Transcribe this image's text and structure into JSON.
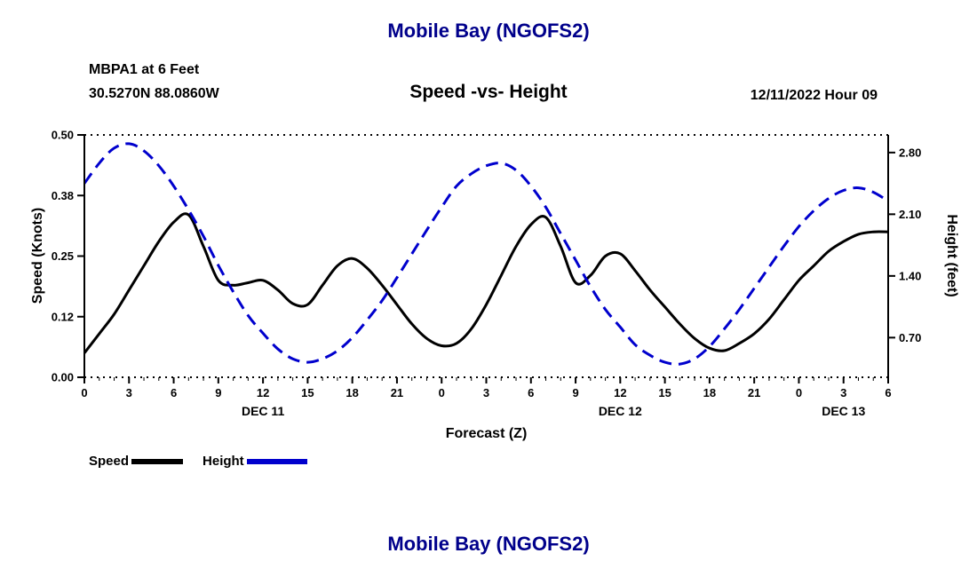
{
  "page": {
    "top_title": "Mobile Bay (NGOFS2)",
    "bottom_title": "Mobile Bay (NGOFS2)"
  },
  "colors": {
    "title": "#00008b",
    "speed": "#000000",
    "height": "#0000cd",
    "axis": "#000000"
  },
  "header": {
    "station_line1": "MBPA1 at 6 Feet",
    "station_line2": "30.5270N  88.0860W",
    "subtitle": "Speed -vs- Height",
    "datetime": "12/11/2022 Hour 09"
  },
  "legend": {
    "speed_label": "Speed",
    "height_label": "Height"
  },
  "chart_data": {
    "type": "line",
    "title": "Speed -vs- Height",
    "xlabel": "Forecast (Z)",
    "ylabel_left": "Speed (Knots)",
    "ylabel_right": "Height (feet)",
    "grid": false,
    "legend_position": "bottom-left",
    "x_hours_range": [
      0,
      54
    ],
    "x_tick_interval": 3,
    "x_tick_labels": [
      "0",
      "3",
      "6",
      "9",
      "12",
      "15",
      "18",
      "21",
      "0",
      "3",
      "6",
      "9",
      "12",
      "15",
      "18",
      "21",
      "0",
      "3",
      "6"
    ],
    "day_labels": [
      {
        "label": "DEC 11",
        "hour": 12
      },
      {
        "label": "DEC 12",
        "hour": 36
      },
      {
        "label": "DEC 13",
        "hour": 51
      }
    ],
    "left_axis": {
      "min": 0.0,
      "max": 0.5,
      "ticks": [
        0,
        0.125,
        0.25,
        0.375,
        0.5
      ],
      "tick_labels": [
        "0.00",
        "0.12",
        "0.25",
        "0.38",
        "0.50"
      ]
    },
    "right_axis": {
      "min": 0.25,
      "max": 3.0,
      "ticks": [
        0.7,
        1.4,
        2.1,
        2.8
      ],
      "tick_labels": [
        "0.70",
        "1.40",
        "2.10",
        "2.80"
      ]
    },
    "hours": [
      0,
      1,
      2,
      3,
      4,
      5,
      6,
      7,
      8,
      9,
      10,
      11,
      12,
      13,
      14,
      15,
      16,
      17,
      18,
      19,
      20,
      21,
      22,
      23,
      24,
      25,
      26,
      27,
      28,
      29,
      30,
      31,
      32,
      33,
      34,
      35,
      36,
      37,
      38,
      39,
      40,
      41,
      42,
      43,
      44,
      45,
      46,
      47,
      48,
      49,
      50,
      51,
      52,
      53,
      54
    ],
    "series": [
      {
        "name": "Speed",
        "axis": "left",
        "units": "knots",
        "color": "#000000",
        "style": "solid",
        "values": [
          0.05,
          0.09,
          0.13,
          0.18,
          0.23,
          0.28,
          0.32,
          0.335,
          0.27,
          0.2,
          0.19,
          0.195,
          0.2,
          0.18,
          0.152,
          0.15,
          0.19,
          0.23,
          0.245,
          0.225,
          0.19,
          0.15,
          0.11,
          0.08,
          0.065,
          0.07,
          0.1,
          0.15,
          0.21,
          0.27,
          0.315,
          0.33,
          0.27,
          0.195,
          0.21,
          0.25,
          0.255,
          0.22,
          0.18,
          0.145,
          0.11,
          0.08,
          0.06,
          0.055,
          0.07,
          0.09,
          0.12,
          0.16,
          0.2,
          0.23,
          0.26,
          0.28,
          0.295,
          0.3,
          0.3
        ]
      },
      {
        "name": "Height",
        "axis": "right",
        "units": "feet",
        "color": "#0000cd",
        "style": "dashed",
        "values": [
          2.45,
          2.68,
          2.85,
          2.9,
          2.82,
          2.65,
          2.42,
          2.15,
          1.85,
          1.52,
          1.22,
          0.95,
          0.75,
          0.57,
          0.46,
          0.42,
          0.46,
          0.55,
          0.7,
          0.9,
          1.12,
          1.38,
          1.65,
          1.92,
          2.18,
          2.42,
          2.56,
          2.65,
          2.68,
          2.6,
          2.42,
          2.18,
          1.88,
          1.58,
          1.28,
          1.02,
          0.82,
          0.62,
          0.5,
          0.42,
          0.4,
          0.46,
          0.6,
          0.8,
          1.02,
          1.26,
          1.5,
          1.74,
          1.96,
          2.14,
          2.28,
          2.37,
          2.4,
          2.35,
          2.25
        ]
      }
    ]
  }
}
